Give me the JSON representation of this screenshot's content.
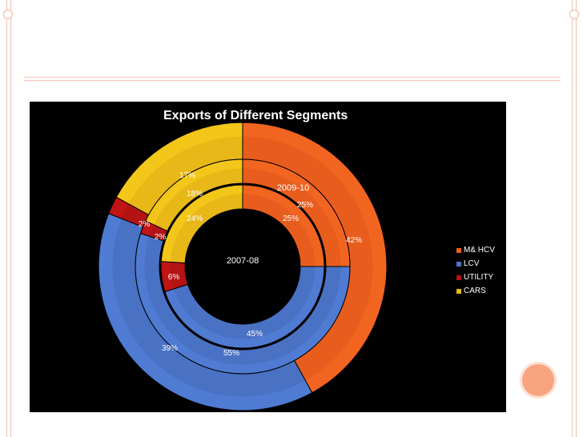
{
  "chart_data": {
    "type": "pie",
    "title": "Exports of Different Segments",
    "categories": [
      "M& HCV",
      "LCV",
      "UTILITY",
      "CARS"
    ],
    "series": [
      {
        "name": "2009-10",
        "values": [
          42,
          39,
          2,
          17
        ],
        "labels": [
          "42%",
          "39%",
          "2%",
          "17%"
        ]
      },
      {
        "name": "",
        "values": [
          25,
          55,
          2,
          18
        ],
        "labels": [
          "25%",
          "55%",
          "2%",
          "18%"
        ]
      },
      {
        "name": "2007-08",
        "values": [
          25,
          45,
          6,
          24
        ],
        "labels": [
          "25%",
          "45%",
          "6%",
          "24%"
        ]
      }
    ],
    "colors": [
      "#e85d1e",
      "#4a72c4",
      "#b31313",
      "#e8b818"
    ],
    "legend_position": "right",
    "grid": false
  }
}
